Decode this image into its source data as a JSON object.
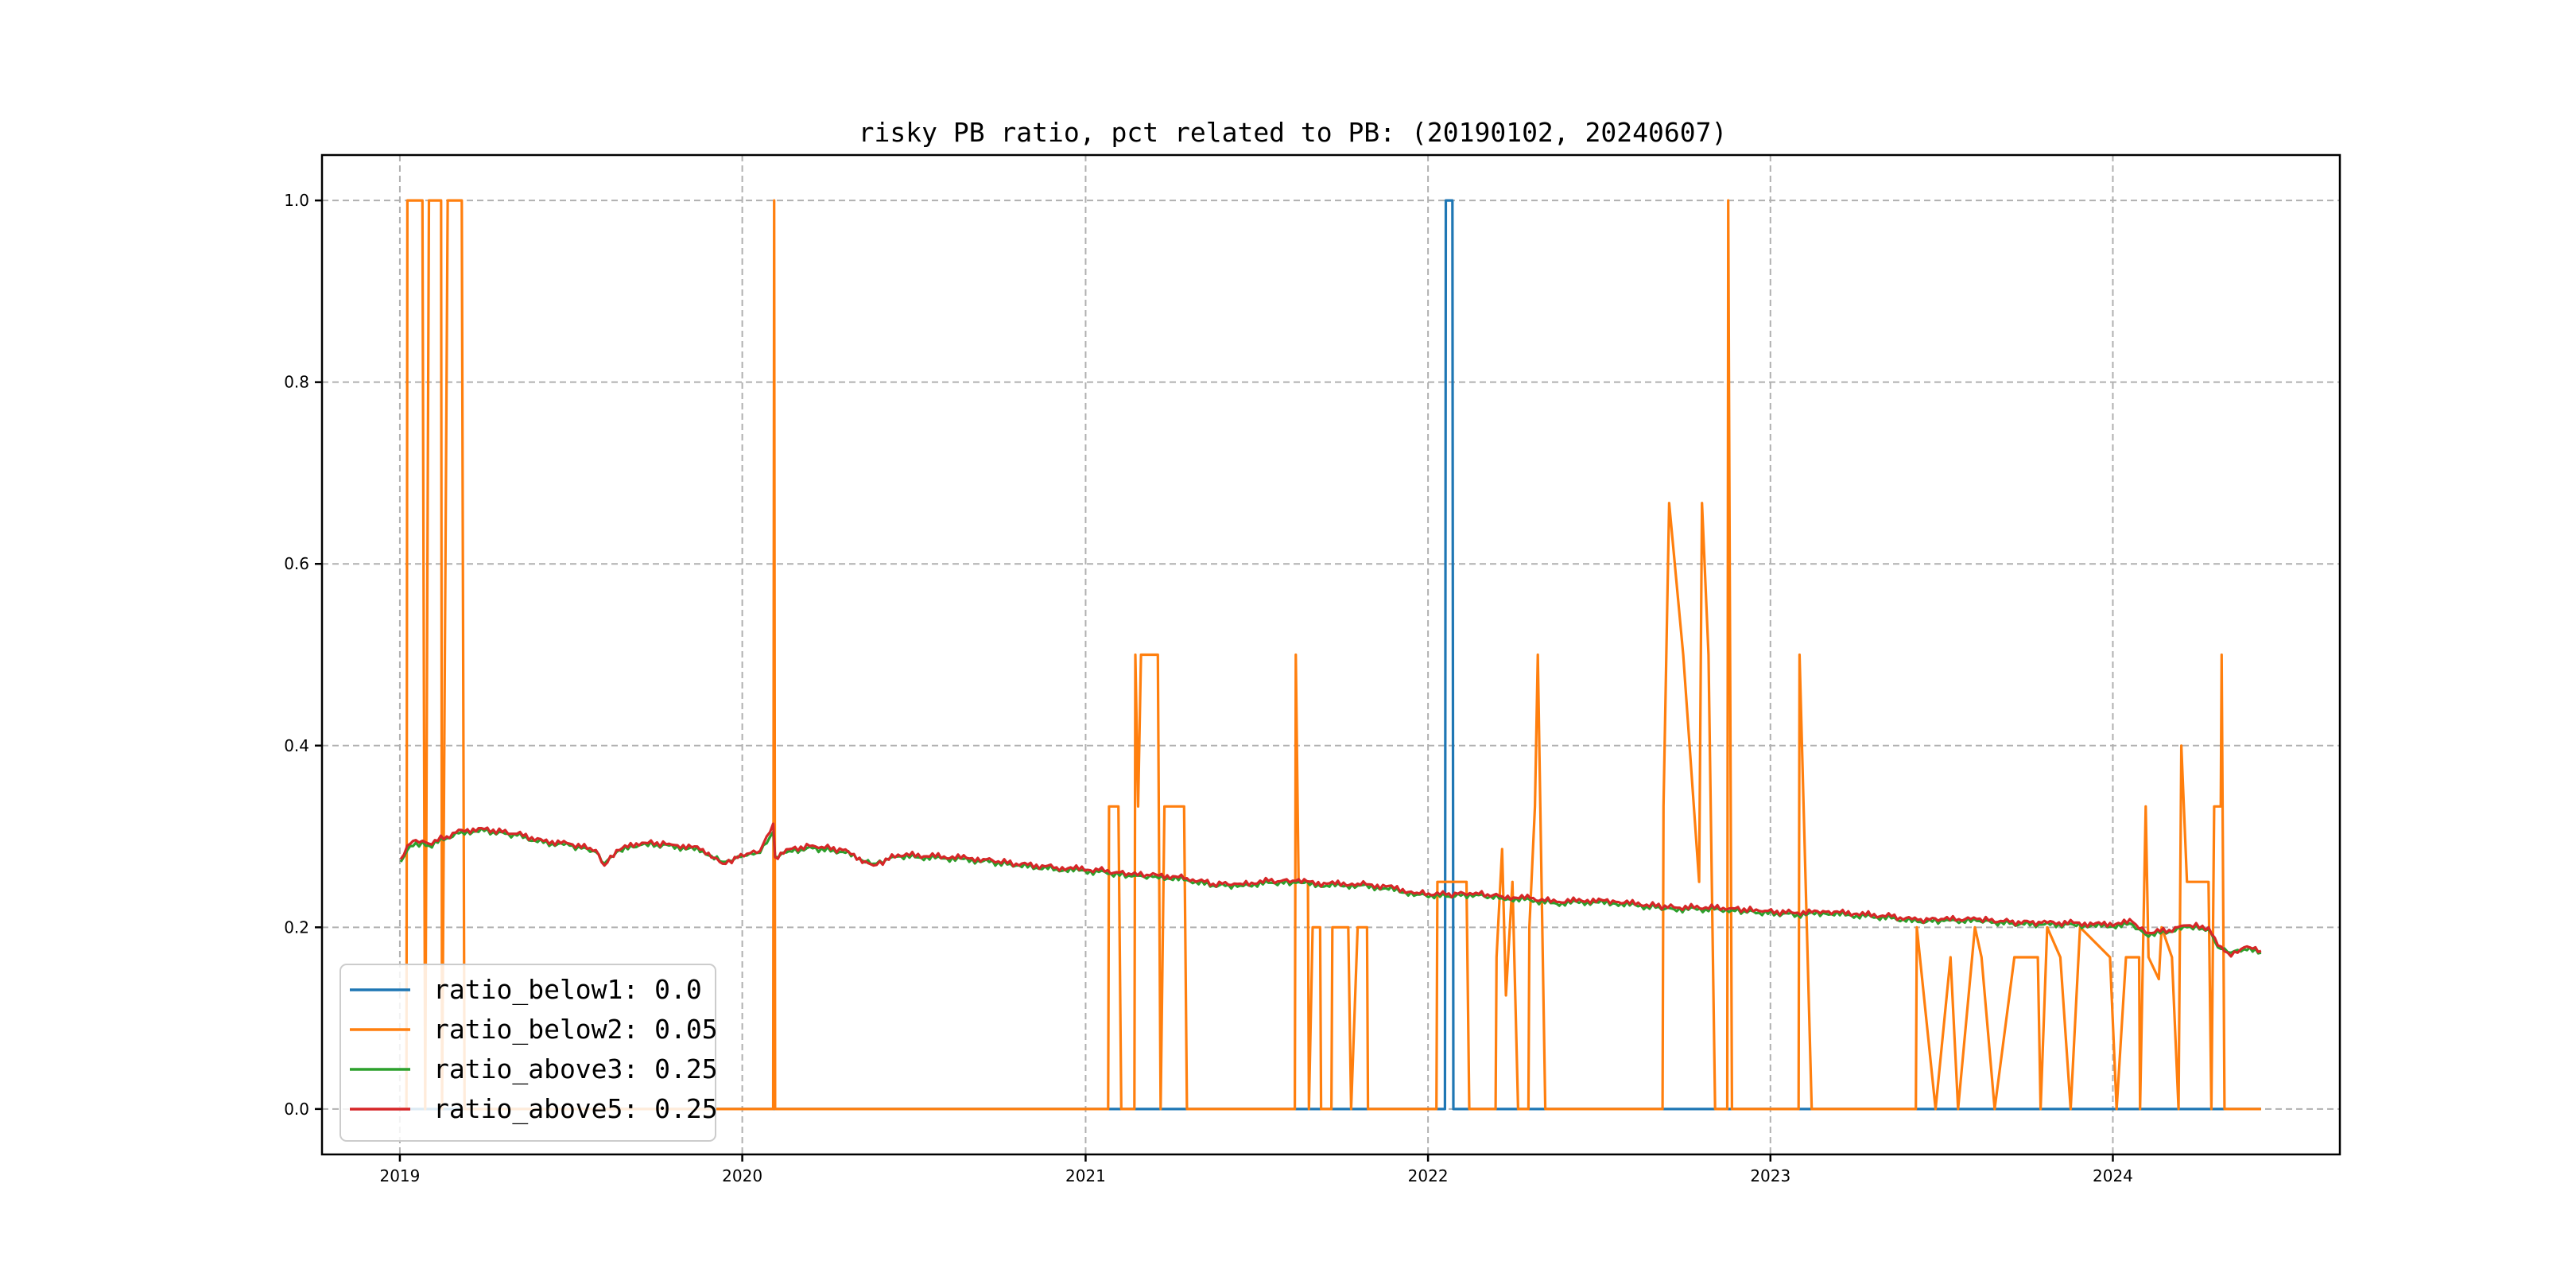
{
  "chart_data": {
    "type": "line",
    "title": "risky PB ratio, pct related to PB: (20190102, 20240607)",
    "xlabel": "",
    "ylabel": "",
    "x_range": [
      "2019-01-02",
      "2024-06-07"
    ],
    "xlim": [
      "2018-10-10",
      "2024-08-30"
    ],
    "ylim": [
      -0.05,
      1.05
    ],
    "x_ticks": [
      "2019",
      "2020",
      "2021",
      "2022",
      "2023",
      "2024"
    ],
    "y_ticks": [
      "0.0",
      "0.2",
      "0.4",
      "0.6",
      "0.8",
      "1.0"
    ],
    "grid": true,
    "legend_position": "lower-left",
    "colors": {
      "ratio_below1": "#1f77b4",
      "ratio_below2": "#ff7f0e",
      "ratio_above3": "#2ca02c",
      "ratio_above5": "#d62728"
    },
    "series": [
      {
        "name": "ratio_below1",
        "legend_label": "ratio_below1: 0.0",
        "points": [
          [
            "2019-01-02",
            0
          ],
          [
            "2022-01-19",
            0
          ],
          [
            "2022-01-20",
            1.0
          ],
          [
            "2022-01-27",
            1.0
          ],
          [
            "2022-01-28",
            0
          ],
          [
            "2024-06-07",
            0
          ]
        ]
      },
      {
        "name": "ratio_below2",
        "legend_label": "ratio_below2: 0.05",
        "points": [
          [
            "2019-01-02",
            0
          ],
          [
            "2019-01-08",
            0
          ],
          [
            "2019-01-09",
            1.0
          ],
          [
            "2019-01-25",
            1.0
          ],
          [
            "2019-01-28",
            0
          ],
          [
            "2019-02-01",
            1.0
          ],
          [
            "2019-02-14",
            1.0
          ],
          [
            "2019-02-15",
            0
          ],
          [
            "2019-02-21",
            1.0
          ],
          [
            "2019-03-08",
            1.0
          ],
          [
            "2019-03-11",
            0
          ],
          [
            "2020-02-03",
            0
          ],
          [
            "2020-02-04",
            1.0
          ],
          [
            "2020-02-05",
            0
          ],
          [
            "2021-01-25",
            0
          ],
          [
            "2021-01-26",
            0.333
          ],
          [
            "2021-02-05",
            0.333
          ],
          [
            "2021-02-08",
            0
          ],
          [
            "2021-02-22",
            0
          ],
          [
            "2021-02-23",
            0.5
          ],
          [
            "2021-02-26",
            0.333
          ],
          [
            "2021-03-01",
            0.5
          ],
          [
            "2021-03-19",
            0.5
          ],
          [
            "2021-03-22",
            0
          ],
          [
            "2021-03-26",
            0.333
          ],
          [
            "2021-04-16",
            0.333
          ],
          [
            "2021-04-19",
            0
          ],
          [
            "2021-08-12",
            0
          ],
          [
            "2021-08-13",
            0.5
          ],
          [
            "2021-08-16",
            0.25
          ],
          [
            "2021-08-26",
            0.25
          ],
          [
            "2021-08-27",
            0
          ],
          [
            "2021-08-31",
            0.2
          ],
          [
            "2021-09-08",
            0.2
          ],
          [
            "2021-09-09",
            0
          ],
          [
            "2021-09-20",
            0
          ],
          [
            "2021-09-21",
            0.2
          ],
          [
            "2021-10-08",
            0.2
          ],
          [
            "2021-10-11",
            0
          ],
          [
            "2021-10-18",
            0.2
          ],
          [
            "2021-10-28",
            0.2
          ],
          [
            "2021-10-29",
            0
          ],
          [
            "2022-01-10",
            0
          ],
          [
            "2022-01-11",
            0.25
          ],
          [
            "2022-02-11",
            0.25
          ],
          [
            "2022-02-14",
            0
          ],
          [
            "2022-03-14",
            0
          ],
          [
            "2022-03-15",
            0.167
          ],
          [
            "2022-03-21",
            0.286
          ],
          [
            "2022-03-25",
            0.125
          ],
          [
            "2022-04-01",
            0.25
          ],
          [
            "2022-04-07",
            0
          ],
          [
            "2022-04-18",
            0
          ],
          [
            "2022-04-19",
            0.2
          ],
          [
            "2022-04-25",
            0.333
          ],
          [
            "2022-04-28",
            0.5
          ],
          [
            "2022-05-06",
            0
          ],
          [
            "2022-09-08",
            0
          ],
          [
            "2022-09-09",
            0.333
          ],
          [
            "2022-09-15",
            0.667
          ],
          [
            "2022-09-30",
            0.5
          ],
          [
            "2022-10-17",
            0.25
          ],
          [
            "2022-10-20",
            0.667
          ],
          [
            "2022-10-27",
            0.5
          ],
          [
            "2022-11-03",
            0
          ],
          [
            "2022-11-16",
            0
          ],
          [
            "2022-11-17",
            1.0
          ],
          [
            "2022-11-21",
            0
          ],
          [
            "2023-01-31",
            0
          ],
          [
            "2023-02-01",
            0.5
          ],
          [
            "2023-02-14",
            0
          ],
          [
            "2023-06-05",
            0
          ],
          [
            "2023-06-06",
            0.2
          ],
          [
            "2023-06-26",
            0
          ],
          [
            "2023-07-12",
            0.167
          ],
          [
            "2023-07-20",
            0
          ],
          [
            "2023-08-07",
            0.2
          ],
          [
            "2023-08-14",
            0.167
          ],
          [
            "2023-08-28",
            0
          ],
          [
            "2023-09-18",
            0.167
          ],
          [
            "2023-10-13",
            0.167
          ],
          [
            "2023-10-16",
            0
          ],
          [
            "2023-10-23",
            0.2
          ],
          [
            "2023-11-06",
            0.167
          ],
          [
            "2023-11-17",
            0
          ],
          [
            "2023-11-27",
            0.2
          ],
          [
            "2023-12-29",
            0.167
          ],
          [
            "2024-01-05",
            0
          ],
          [
            "2024-01-15",
            0.167
          ],
          [
            "2024-01-29",
            0.167
          ],
          [
            "2024-01-30",
            0
          ],
          [
            "2024-02-05",
            0.333
          ],
          [
            "2024-02-08",
            0.167
          ],
          [
            "2024-02-19",
            0.143
          ],
          [
            "2024-02-22",
            0.2
          ],
          [
            "2024-03-04",
            0.167
          ],
          [
            "2024-03-11",
            0
          ],
          [
            "2024-03-14",
            0.4
          ],
          [
            "2024-03-20",
            0.25
          ],
          [
            "2024-04-12",
            0.25
          ],
          [
            "2024-04-15",
            0
          ],
          [
            "2024-04-18",
            0.333
          ],
          [
            "2024-04-25",
            0.333
          ],
          [
            "2024-04-26",
            0.5
          ],
          [
            "2024-04-29",
            0
          ],
          [
            "2024-06-07",
            0
          ]
        ]
      },
      {
        "name": "ratio_above3",
        "legend_label": "ratio_above3: 0.25",
        "points": [
          [
            "2019-01-02",
            0.272
          ],
          [
            "2019-01-09",
            0.285
          ],
          [
            "2019-01-18",
            0.293
          ],
          [
            "2019-02-01",
            0.29
          ],
          [
            "2019-02-20",
            0.298
          ],
          [
            "2019-03-08",
            0.305
          ],
          [
            "2019-04-01",
            0.306
          ],
          [
            "2019-05-06",
            0.301
          ],
          [
            "2019-06-03",
            0.293
          ],
          [
            "2019-07-01",
            0.29
          ],
          [
            "2019-07-29",
            0.283
          ],
          [
            "2019-08-07",
            0.27
          ],
          [
            "2019-08-20",
            0.283
          ],
          [
            "2019-09-16",
            0.291
          ],
          [
            "2019-10-15",
            0.29
          ],
          [
            "2019-11-20",
            0.284
          ],
          [
            "2019-12-11",
            0.272
          ],
          [
            "2020-01-06",
            0.279
          ],
          [
            "2020-01-20",
            0.282
          ],
          [
            "2020-02-03",
            0.305
          ],
          [
            "2020-02-05",
            0.278
          ],
          [
            "2020-02-20",
            0.284
          ],
          [
            "2020-03-16",
            0.287
          ],
          [
            "2020-04-17",
            0.283
          ],
          [
            "2020-05-20",
            0.27
          ],
          [
            "2020-06-15",
            0.278
          ],
          [
            "2020-08-03",
            0.276
          ],
          [
            "2020-09-14",
            0.273
          ],
          [
            "2020-10-19",
            0.268
          ],
          [
            "2020-12-01",
            0.264
          ],
          [
            "2021-01-15",
            0.261
          ],
          [
            "2021-02-19",
            0.256
          ],
          [
            "2021-03-17",
            0.256
          ],
          [
            "2021-04-19",
            0.252
          ],
          [
            "2021-05-17",
            0.246
          ],
          [
            "2021-06-15",
            0.246
          ],
          [
            "2021-07-15",
            0.249
          ],
          [
            "2021-08-13",
            0.249
          ],
          [
            "2021-09-15",
            0.246
          ],
          [
            "2021-10-18",
            0.246
          ],
          [
            "2021-11-17",
            0.243
          ],
          [
            "2021-12-20",
            0.236
          ],
          [
            "2022-01-20",
            0.234
          ],
          [
            "2022-02-21",
            0.236
          ],
          [
            "2022-03-21",
            0.232
          ],
          [
            "2022-04-20",
            0.23
          ],
          [
            "2022-05-18",
            0.226
          ],
          [
            "2022-06-20",
            0.228
          ],
          [
            "2022-07-20",
            0.226
          ],
          [
            "2022-08-22",
            0.223
          ],
          [
            "2022-09-20",
            0.22
          ],
          [
            "2022-10-24",
            0.22
          ],
          [
            "2022-11-21",
            0.219
          ],
          [
            "2022-12-20",
            0.216
          ],
          [
            "2023-01-30",
            0.214
          ],
          [
            "2023-03-01",
            0.215
          ],
          [
            "2023-04-03",
            0.213
          ],
          [
            "2023-05-10",
            0.21
          ],
          [
            "2023-06-07",
            0.206
          ],
          [
            "2023-07-05",
            0.207
          ],
          [
            "2023-08-09",
            0.207
          ],
          [
            "2023-09-13",
            0.204
          ],
          [
            "2023-10-17",
            0.203
          ],
          [
            "2023-11-20",
            0.203
          ],
          [
            "2023-12-20",
            0.201
          ],
          [
            "2024-01-22",
            0.203
          ],
          [
            "2024-02-05",
            0.192
          ],
          [
            "2024-03-01",
            0.195
          ],
          [
            "2024-03-20",
            0.2
          ],
          [
            "2024-04-12",
            0.198
          ],
          [
            "2024-04-22",
            0.178
          ],
          [
            "2024-05-06",
            0.172
          ],
          [
            "2024-05-20",
            0.176
          ],
          [
            "2024-06-07",
            0.172
          ]
        ]
      },
      {
        "name": "ratio_above5",
        "legend_label": "ratio_above5: 0.25",
        "points": [
          [
            "2019-01-02",
            0.275
          ],
          [
            "2019-01-09",
            0.29
          ],
          [
            "2019-01-18",
            0.296
          ],
          [
            "2019-02-01",
            0.292
          ],
          [
            "2019-02-20",
            0.3
          ],
          [
            "2019-03-08",
            0.307
          ],
          [
            "2019-04-01",
            0.308
          ],
          [
            "2019-05-06",
            0.303
          ],
          [
            "2019-06-03",
            0.295
          ],
          [
            "2019-07-01",
            0.292
          ],
          [
            "2019-07-29",
            0.285
          ],
          [
            "2019-08-07",
            0.268
          ],
          [
            "2019-08-20",
            0.285
          ],
          [
            "2019-09-16",
            0.293
          ],
          [
            "2019-10-15",
            0.292
          ],
          [
            "2019-11-20",
            0.286
          ],
          [
            "2019-12-11",
            0.27
          ],
          [
            "2020-01-06",
            0.281
          ],
          [
            "2020-01-20",
            0.284
          ],
          [
            "2020-02-03",
            0.314
          ],
          [
            "2020-02-05",
            0.277
          ],
          [
            "2020-02-20",
            0.286
          ],
          [
            "2020-03-16",
            0.29
          ],
          [
            "2020-04-17",
            0.285
          ],
          [
            "2020-05-20",
            0.268
          ],
          [
            "2020-06-15",
            0.28
          ],
          [
            "2020-08-03",
            0.278
          ],
          [
            "2020-09-14",
            0.275
          ],
          [
            "2020-10-19",
            0.27
          ],
          [
            "2020-12-01",
            0.266
          ],
          [
            "2021-01-15",
            0.263
          ],
          [
            "2021-02-19",
            0.258
          ],
          [
            "2021-03-17",
            0.258
          ],
          [
            "2021-04-19",
            0.254
          ],
          [
            "2021-05-17",
            0.248
          ],
          [
            "2021-06-15",
            0.248
          ],
          [
            "2021-07-15",
            0.251
          ],
          [
            "2021-08-13",
            0.251
          ],
          [
            "2021-09-15",
            0.248
          ],
          [
            "2021-10-18",
            0.248
          ],
          [
            "2021-11-17",
            0.245
          ],
          [
            "2021-12-20",
            0.238
          ],
          [
            "2022-01-20",
            0.236
          ],
          [
            "2022-02-21",
            0.238
          ],
          [
            "2022-03-21",
            0.234
          ],
          [
            "2022-04-20",
            0.232
          ],
          [
            "2022-05-18",
            0.228
          ],
          [
            "2022-06-20",
            0.23
          ],
          [
            "2022-07-20",
            0.228
          ],
          [
            "2022-08-22",
            0.225
          ],
          [
            "2022-09-20",
            0.222
          ],
          [
            "2022-10-24",
            0.222
          ],
          [
            "2022-11-21",
            0.221
          ],
          [
            "2022-12-20",
            0.218
          ],
          [
            "2023-01-30",
            0.216
          ],
          [
            "2023-03-01",
            0.217
          ],
          [
            "2023-04-03",
            0.215
          ],
          [
            "2023-05-10",
            0.212
          ],
          [
            "2023-06-07",
            0.208
          ],
          [
            "2023-07-05",
            0.209
          ],
          [
            "2023-08-09",
            0.209
          ],
          [
            "2023-09-13",
            0.206
          ],
          [
            "2023-10-17",
            0.205
          ],
          [
            "2023-11-20",
            0.205
          ],
          [
            "2023-12-20",
            0.203
          ],
          [
            "2024-01-22",
            0.206
          ],
          [
            "2024-02-05",
            0.194
          ],
          [
            "2024-03-01",
            0.197
          ],
          [
            "2024-03-20",
            0.202
          ],
          [
            "2024-04-12",
            0.2
          ],
          [
            "2024-04-22",
            0.18
          ],
          [
            "2024-05-06",
            0.168
          ],
          [
            "2024-05-20",
            0.178
          ],
          [
            "2024-06-07",
            0.174
          ]
        ]
      }
    ]
  }
}
